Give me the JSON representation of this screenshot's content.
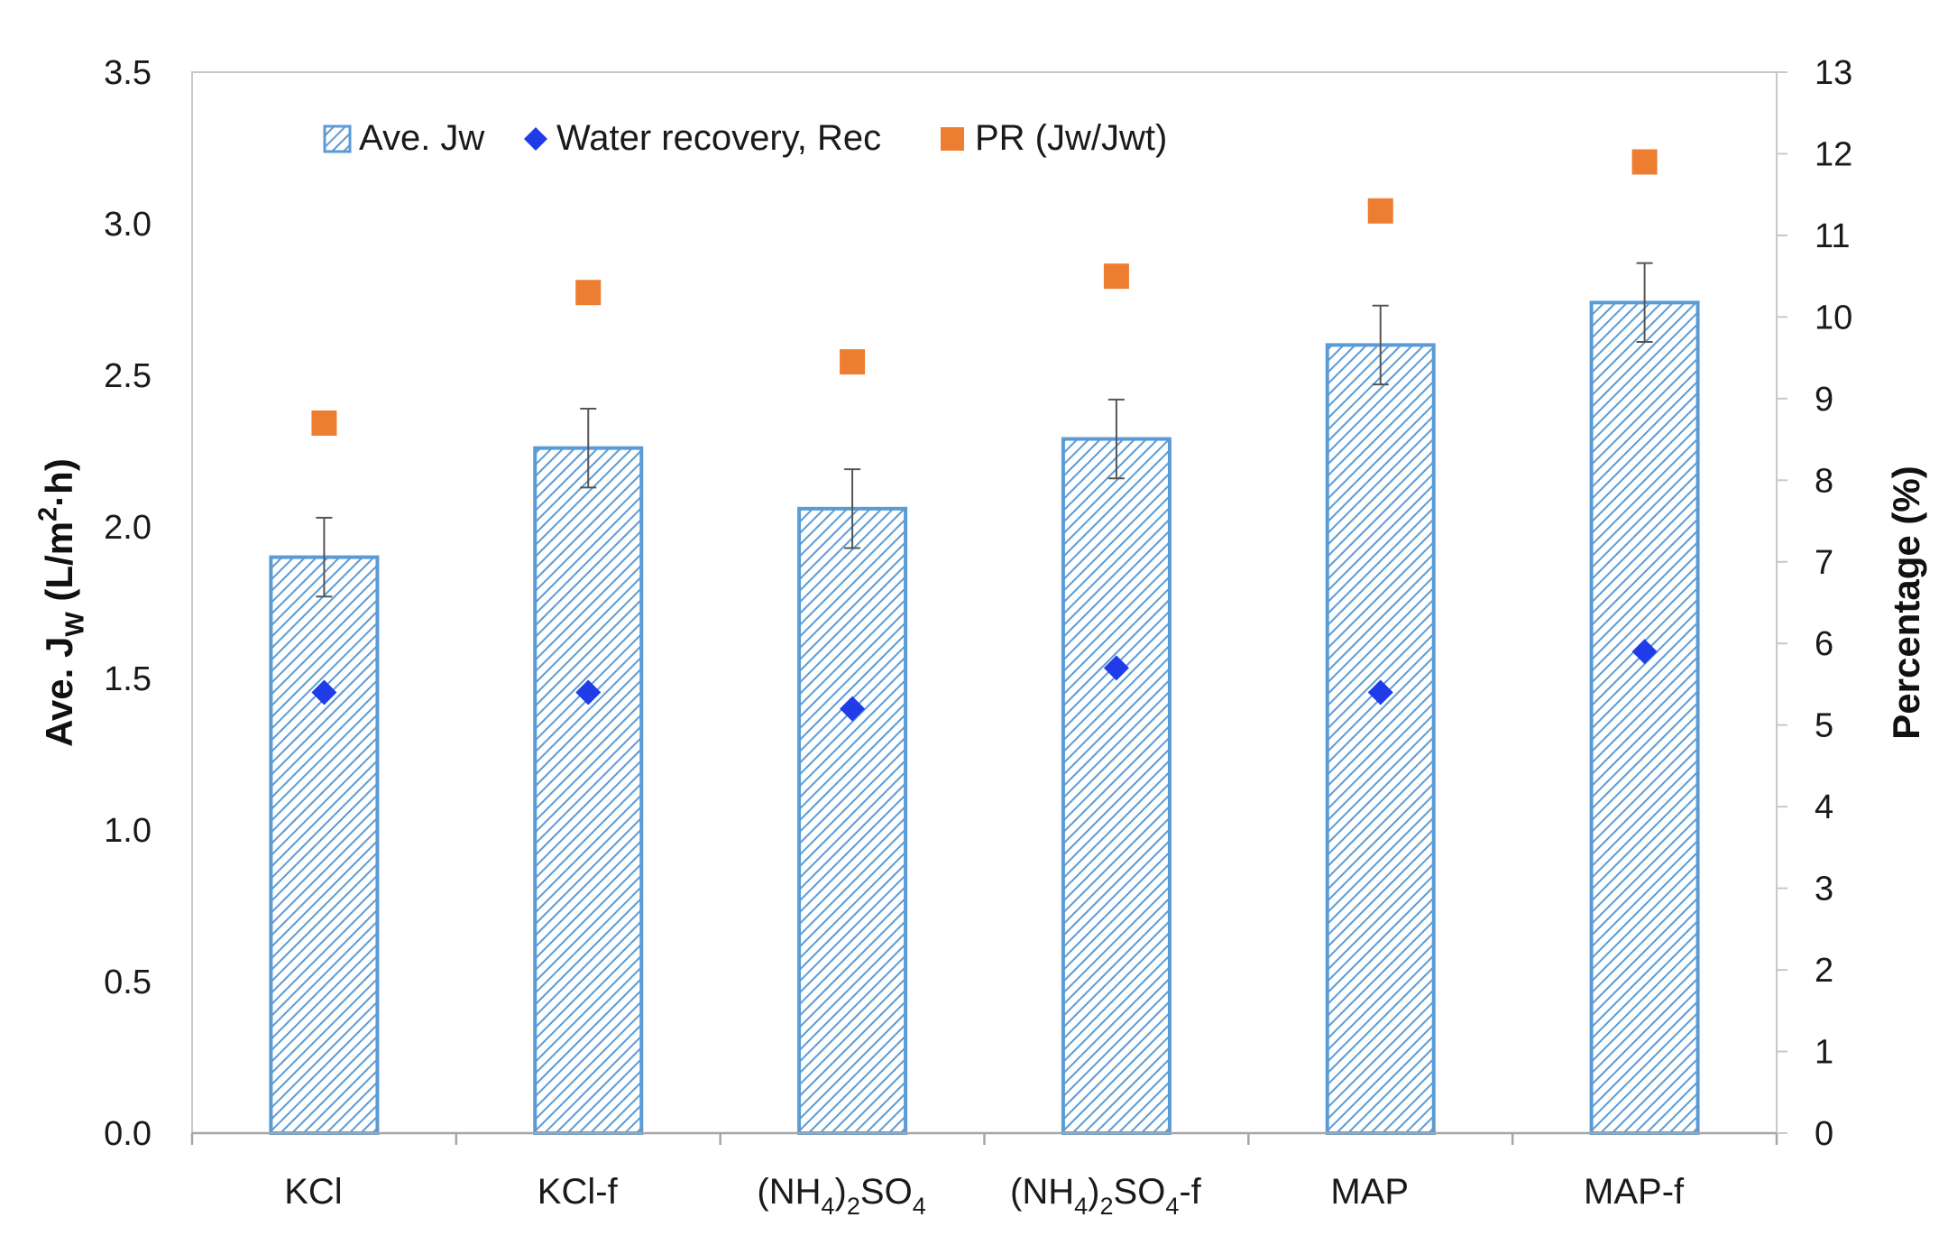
{
  "chart_data": {
    "type": "bar",
    "categories": [
      {
        "parts": [
          {
            "t": "KCl"
          }
        ]
      },
      {
        "parts": [
          {
            "t": "KCl-f"
          }
        ]
      },
      {
        "parts": [
          {
            "t": "(NH"
          },
          {
            "t": "4",
            "sub": true
          },
          {
            "t": ")"
          },
          {
            "t": "2",
            "sub": true
          },
          {
            "t": "SO"
          },
          {
            "t": "4",
            "sub": true
          }
        ]
      },
      {
        "parts": [
          {
            "t": "(NH"
          },
          {
            "t": "4",
            "sub": true
          },
          {
            "t": ")"
          },
          {
            "t": "2",
            "sub": true
          },
          {
            "t": "SO"
          },
          {
            "t": "4",
            "sub": true
          },
          {
            "t": "-f"
          }
        ]
      },
      {
        "parts": [
          {
            "t": "MAP"
          }
        ]
      },
      {
        "parts": [
          {
            "t": "MAP-f"
          }
        ]
      }
    ],
    "series": [
      {
        "name": "Ave. Jw",
        "kind": "bar",
        "axis": "left",
        "values": [
          1.9,
          2.26,
          2.06,
          2.29,
          2.6,
          2.74
        ],
        "error": [
          0.13,
          0.13,
          0.13,
          0.13,
          0.13,
          0.13
        ],
        "color": "#5b9bd5",
        "pattern": "diagonal-hatch"
      },
      {
        "name": "Water recovery, Rec",
        "kind": "marker",
        "marker": "diamond",
        "axis": "right",
        "values": [
          5.4,
          5.4,
          5.2,
          5.7,
          5.4,
          5.9
        ],
        "color": "#1f3ce8"
      },
      {
        "name": "PR (Jw/Jwt)",
        "kind": "marker",
        "marker": "square",
        "axis": "right",
        "values": [
          8.7,
          10.3,
          9.45,
          10.5,
          11.3,
          11.9
        ],
        "color": "#ed7d31"
      }
    ],
    "y_left": {
      "label_parts": [
        {
          "t": "Ave. J"
        },
        {
          "t": "W",
          "sub": true
        },
        {
          "t": " (L/m"
        },
        {
          "t": "2",
          "sup": true
        },
        {
          "t": "·h)"
        }
      ],
      "lim": [
        0,
        3.5
      ],
      "ticks": [
        "0.0",
        "0.5",
        "1.0",
        "1.5",
        "2.0",
        "2.5",
        "3.0",
        "3.5"
      ]
    },
    "y_right": {
      "label": "Percentage (%)",
      "lim": [
        0,
        13
      ],
      "ticks": [
        "0",
        "1",
        "2",
        "3",
        "4",
        "5",
        "6",
        "7",
        "8",
        "9",
        "10",
        "11",
        "12",
        "13"
      ]
    },
    "legend": {
      "placement": "top-left inside plot",
      "items": [
        "Ave. Jw",
        "Water recovery, Rec",
        "PR (Jw/Jwt)"
      ]
    },
    "grid": false
  }
}
